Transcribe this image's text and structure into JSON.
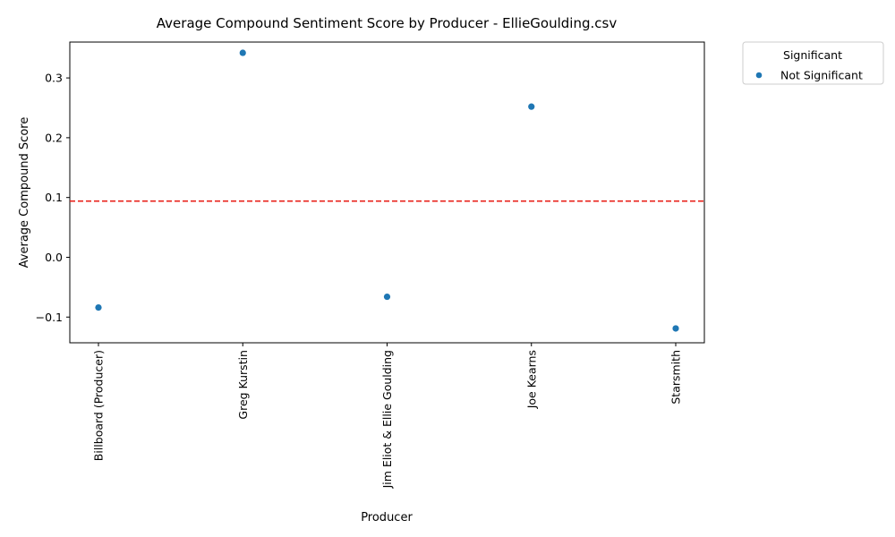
{
  "chart_data": {
    "type": "scatter",
    "title": "Average Compound Sentiment Score by Producer - EllieGoulding.csv",
    "xlabel": "Producer",
    "ylabel": "Average Compound Score",
    "categories": [
      "Billboard (Producer)",
      "Greg Kurstin",
      "Jim Eliot & Ellie Goulding",
      "Joe Kearns",
      "Starsmith"
    ],
    "series": [
      {
        "name": "Not Significant",
        "color": "#1f77b4",
        "values": [
          -0.084,
          0.342,
          -0.066,
          0.252,
          -0.119
        ]
      }
    ],
    "ylim": [
      -0.143,
      0.36
    ],
    "yticks": [
      -0.1,
      0.0,
      0.1,
      0.2,
      0.3
    ],
    "ytick_labels": [
      "−0.1",
      "0.0",
      "0.1",
      "0.2",
      "0.3"
    ],
    "reference_line": {
      "value": 0.094,
      "color": "#e8221b",
      "style": "dashed"
    },
    "legend": {
      "title": "Significant",
      "placement": "outside-top-right"
    },
    "grid": false
  }
}
